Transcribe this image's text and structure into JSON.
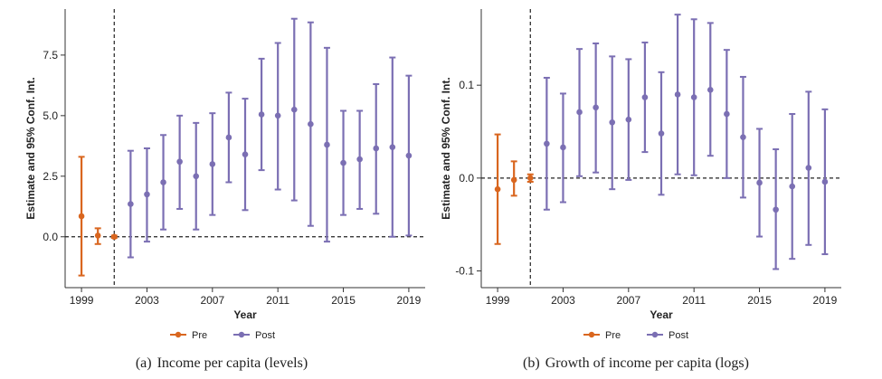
{
  "chart_data": [
    {
      "type": "scatter",
      "subplot": "(a)",
      "caption": "Income per capita (levels)",
      "xlabel": "Year",
      "ylabel": "Estimate and 95% Conf. Int.",
      "xlim": [
        1998,
        2020
      ],
      "ylim": [
        -2.1,
        9.4
      ],
      "xticks": [
        1999,
        2003,
        2007,
        2011,
        2015,
        2019
      ],
      "yticks": [
        0.0,
        2.5,
        5.0,
        7.5
      ],
      "ytick_labels": [
        "0.0",
        "2.5",
        "5.0",
        "7.5"
      ],
      "ref_line_y": 0,
      "event_line_x": 2001,
      "legend": {
        "position": "bottom",
        "entries": [
          "Pre",
          "Post"
        ]
      },
      "colors": {
        "Pre": "#d9661f",
        "Post": "#7b6fb3"
      },
      "series": [
        {
          "name": "Pre",
          "points": [
            {
              "x": 1999,
              "y": 0.85,
              "lo": -1.6,
              "hi": 3.3
            },
            {
              "x": 2000,
              "y": 0.05,
              "lo": -0.3,
              "hi": 0.35
            },
            {
              "x": 2001,
              "y": 0.0,
              "lo": -0.05,
              "hi": 0.05
            }
          ]
        },
        {
          "name": "Post",
          "points": [
            {
              "x": 2002,
              "y": 1.35,
              "lo": -0.85,
              "hi": 3.55
            },
            {
              "x": 2003,
              "y": 1.75,
              "lo": -0.2,
              "hi": 3.65
            },
            {
              "x": 2004,
              "y": 2.25,
              "lo": 0.3,
              "hi": 4.2
            },
            {
              "x": 2005,
              "y": 3.1,
              "lo": 1.15,
              "hi": 5.0
            },
            {
              "x": 2006,
              "y": 2.5,
              "lo": 0.3,
              "hi": 4.7
            },
            {
              "x": 2007,
              "y": 3.0,
              "lo": 0.9,
              "hi": 5.1
            },
            {
              "x": 2008,
              "y": 4.1,
              "lo": 2.25,
              "hi": 5.95
            },
            {
              "x": 2009,
              "y": 3.4,
              "lo": 1.1,
              "hi": 5.7
            },
            {
              "x": 2010,
              "y": 5.05,
              "lo": 2.75,
              "hi": 7.35
            },
            {
              "x": 2011,
              "y": 5.0,
              "lo": 1.95,
              "hi": 8.0
            },
            {
              "x": 2012,
              "y": 5.25,
              "lo": 1.5,
              "hi": 9.0
            },
            {
              "x": 2013,
              "y": 4.65,
              "lo": 0.45,
              "hi": 8.85
            },
            {
              "x": 2014,
              "y": 3.8,
              "lo": -0.2,
              "hi": 7.8
            },
            {
              "x": 2015,
              "y": 3.05,
              "lo": 0.9,
              "hi": 5.2
            },
            {
              "x": 2016,
              "y": 3.2,
              "lo": 1.15,
              "hi": 5.2
            },
            {
              "x": 2017,
              "y": 3.65,
              "lo": 0.95,
              "hi": 6.3
            },
            {
              "x": 2018,
              "y": 3.7,
              "lo": 0.0,
              "hi": 7.4
            },
            {
              "x": 2019,
              "y": 3.35,
              "lo": 0.05,
              "hi": 6.65
            }
          ]
        }
      ]
    },
    {
      "type": "scatter",
      "subplot": "(b)",
      "caption": "Growth of income per capita (logs)",
      "xlabel": "Year",
      "ylabel": "Estimate and 95% Conf. Int.",
      "xlim": [
        1998,
        2020
      ],
      "ylim": [
        -0.118,
        0.182
      ],
      "xticks": [
        1999,
        2003,
        2007,
        2011,
        2015,
        2019
      ],
      "yticks": [
        -0.1,
        0.0,
        0.1
      ],
      "ytick_labels": [
        "-0.1",
        "0.0",
        "0.1"
      ],
      "ref_line_y": 0,
      "event_line_x": 2001,
      "legend": {
        "position": "bottom",
        "entries": [
          "Pre",
          "Post"
        ]
      },
      "colors": {
        "Pre": "#d9661f",
        "Post": "#7b6fb3"
      },
      "series": [
        {
          "name": "Pre",
          "points": [
            {
              "x": 1999,
              "y": -0.012,
              "lo": -0.071,
              "hi": 0.047
            },
            {
              "x": 2000,
              "y": -0.002,
              "lo": -0.019,
              "hi": 0.018
            },
            {
              "x": 2001,
              "y": 0.0,
              "lo": -0.004,
              "hi": 0.004
            }
          ]
        },
        {
          "name": "Post",
          "points": [
            {
              "x": 2002,
              "y": 0.037,
              "lo": -0.034,
              "hi": 0.108
            },
            {
              "x": 2003,
              "y": 0.033,
              "lo": -0.026,
              "hi": 0.091
            },
            {
              "x": 2004,
              "y": 0.071,
              "lo": 0.002,
              "hi": 0.139
            },
            {
              "x": 2005,
              "y": 0.076,
              "lo": 0.006,
              "hi": 0.145
            },
            {
              "x": 2006,
              "y": 0.06,
              "lo": -0.012,
              "hi": 0.131
            },
            {
              "x": 2007,
              "y": 0.063,
              "lo": -0.002,
              "hi": 0.128
            },
            {
              "x": 2008,
              "y": 0.087,
              "lo": 0.028,
              "hi": 0.146
            },
            {
              "x": 2009,
              "y": 0.048,
              "lo": -0.018,
              "hi": 0.114
            },
            {
              "x": 2010,
              "y": 0.09,
              "lo": 0.004,
              "hi": 0.176
            },
            {
              "x": 2011,
              "y": 0.087,
              "lo": 0.003,
              "hi": 0.171
            },
            {
              "x": 2012,
              "y": 0.095,
              "lo": 0.024,
              "hi": 0.167
            },
            {
              "x": 2013,
              "y": 0.069,
              "lo": 0.0,
              "hi": 0.138
            },
            {
              "x": 2014,
              "y": 0.044,
              "lo": -0.021,
              "hi": 0.109
            },
            {
              "x": 2015,
              "y": -0.005,
              "lo": -0.063,
              "hi": 0.053
            },
            {
              "x": 2016,
              "y": -0.034,
              "lo": -0.098,
              "hi": 0.031
            },
            {
              "x": 2017,
              "y": -0.009,
              "lo": -0.087,
              "hi": 0.069
            },
            {
              "x": 2018,
              "y": 0.011,
              "lo": -0.072,
              "hi": 0.093
            },
            {
              "x": 2019,
              "y": -0.004,
              "lo": -0.082,
              "hi": 0.074
            }
          ]
        }
      ]
    }
  ]
}
